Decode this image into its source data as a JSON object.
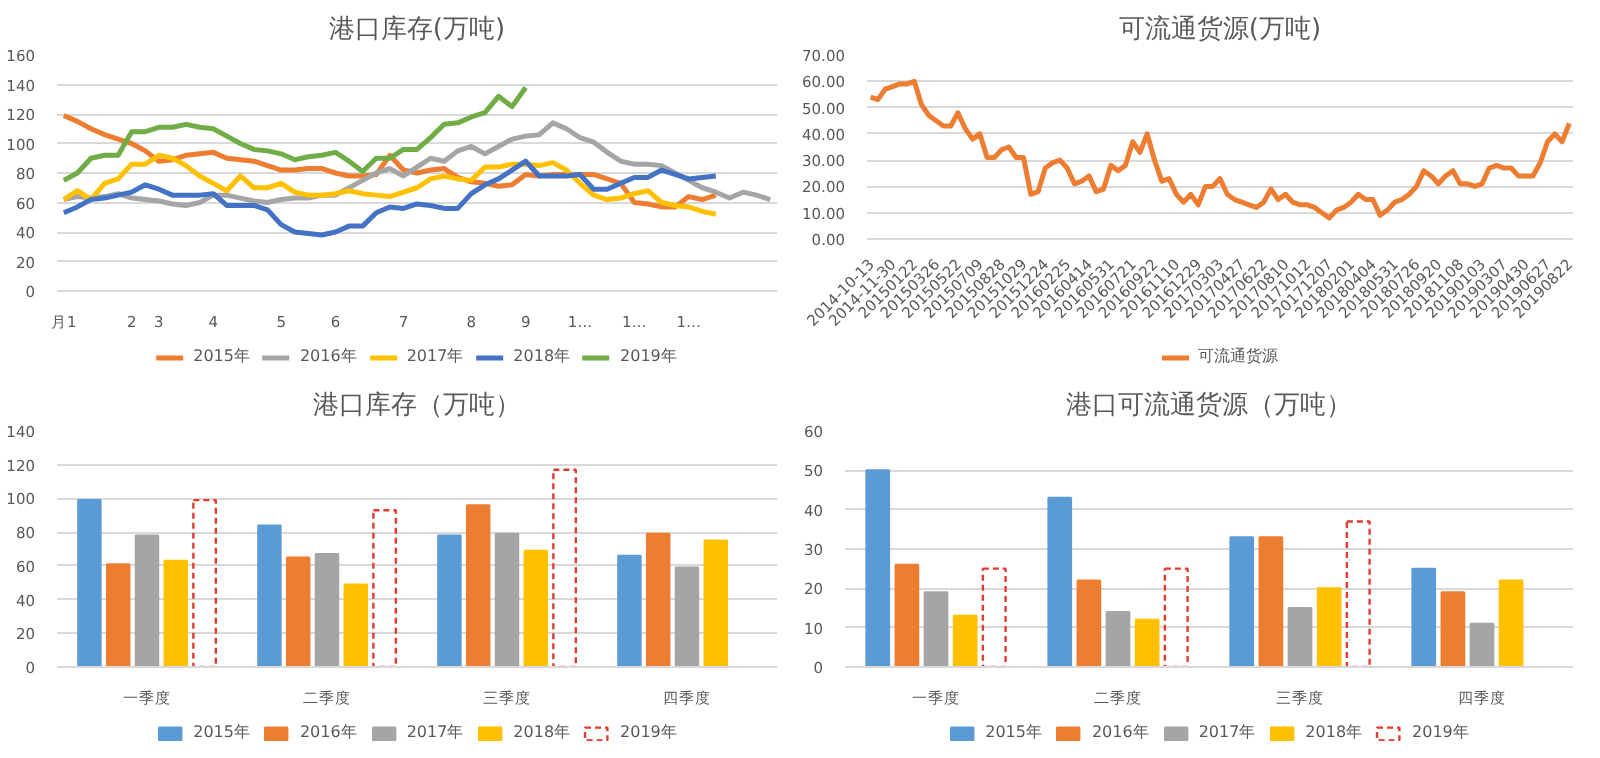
{
  "chart_data": [
    {
      "type": "line",
      "title": "港口库存(万吨)",
      "categories": [
        "月1",
        null,
        null,
        null,
        null,
        "2",
        null,
        "3",
        null,
        null,
        null,
        "4",
        null,
        null,
        null,
        null,
        "5",
        null,
        null,
        null,
        "6",
        null,
        null,
        null,
        null,
        "7",
        null,
        null,
        null,
        null,
        "8",
        null,
        null,
        null,
        "9",
        null,
        null,
        null,
        "1…",
        null,
        null,
        null,
        "1…",
        null,
        null,
        null,
        "1…",
        null,
        null,
        null,
        null,
        null,
        null
      ],
      "ylim": [
        0,
        160
      ],
      "yticks": [
        0,
        20,
        40,
        60,
        80,
        100,
        120,
        140,
        160
      ],
      "grid": "y",
      "legend": "bottom",
      "series": [
        {
          "name": "2015年",
          "color": "#ed7d31",
          "values": [
            119,
            115,
            110,
            106,
            103,
            100,
            95,
            88,
            89,
            92,
            93,
            94,
            90,
            89,
            88,
            85,
            82,
            82,
            83,
            83,
            80,
            78,
            78,
            79,
            92,
            82,
            80,
            82,
            83,
            77,
            74,
            73,
            71,
            72,
            79,
            78,
            79,
            79,
            79,
            79,
            76,
            73,
            60,
            59,
            57,
            57,
            64,
            62,
            65,
            null,
            null,
            null,
            null
          ]
        },
        {
          "name": "2016年",
          "color": "#a5a5a5",
          "values": [
            62,
            64,
            63,
            64,
            66,
            63,
            62,
            61,
            59,
            58,
            60,
            65,
            65,
            63,
            61,
            60,
            62,
            63,
            63,
            65,
            65,
            70,
            75,
            80,
            83,
            78,
            84,
            90,
            88,
            95,
            98,
            93,
            98,
            103,
            105,
            106,
            114,
            110,
            104,
            101,
            94,
            88,
            86,
            86,
            85,
            80,
            75,
            70,
            67,
            63,
            67,
            65,
            62
          ]
        },
        {
          "name": "2017年",
          "color": "#ffc000",
          "values": [
            62,
            68,
            62,
            73,
            76,
            86,
            86,
            92,
            90,
            85,
            78,
            73,
            68,
            78,
            70,
            70,
            73,
            67,
            65,
            65,
            66,
            68,
            66,
            65,
            64,
            67,
            70,
            76,
            78,
            76,
            75,
            84,
            84,
            86,
            86,
            85,
            87,
            82,
            73,
            65,
            62,
            63,
            66,
            68,
            60,
            58,
            57,
            54,
            52,
            null,
            null,
            null,
            null
          ]
        },
        {
          "name": "2018年",
          "color": "#4472c4",
          "values": [
            53,
            57,
            62,
            63,
            65,
            67,
            72,
            69,
            65,
            65,
            65,
            66,
            58,
            58,
            58,
            55,
            45,
            40,
            39,
            38,
            40,
            44,
            44,
            53,
            57,
            56,
            59,
            58,
            56,
            56,
            66,
            72,
            76,
            82,
            88,
            78,
            78,
            78,
            79,
            69,
            69,
            73,
            77,
            77,
            82,
            79,
            76,
            77,
            78,
            null,
            null,
            null,
            null
          ]
        },
        {
          "name": "2019年",
          "color": "#70ad47",
          "values": [
            75,
            80,
            90,
            92,
            92,
            108,
            108,
            111,
            111,
            113,
            111,
            110,
            105,
            100,
            96,
            95,
            93,
            89,
            91,
            92,
            94,
            88,
            81,
            90,
            90,
            96,
            96,
            104,
            113,
            114,
            118,
            121,
            132,
            125,
            138,
            null,
            null,
            null,
            null,
            null,
            null,
            null,
            null,
            null,
            null,
            null,
            null,
            null,
            null,
            null,
            null,
            null,
            null
          ]
        }
      ]
    },
    {
      "type": "line",
      "title": "可流通货源(万吨)",
      "categories": [
        "2014-10-13",
        null,
        null,
        "2014-11-30",
        null,
        null,
        "20150122",
        null,
        null,
        "20150326",
        null,
        null,
        "20150522",
        null,
        null,
        "20150709",
        null,
        null,
        "20150828",
        null,
        null,
        "20151029",
        null,
        null,
        "20151224",
        null,
        null,
        "20160225",
        null,
        null,
        "20160414",
        null,
        null,
        "20160531",
        null,
        null,
        "20160721",
        null,
        null,
        "20160922",
        null,
        null,
        "20161110",
        null,
        null,
        "20161229",
        null,
        null,
        "20170303",
        null,
        null,
        "20170427",
        null,
        null,
        "20170622",
        null,
        null,
        "20170810",
        null,
        null,
        "20171012",
        null,
        null,
        "20171207",
        null,
        null,
        "20180201",
        null,
        null,
        "20180404",
        null,
        null,
        "20180531",
        null,
        null,
        "20180726",
        null,
        null,
        "20180920",
        null,
        null,
        "20181108",
        null,
        null,
        "20190103",
        null,
        null,
        "20190307",
        null,
        null,
        "20190430",
        null,
        null,
        "20190627",
        null,
        null,
        "20190822"
      ],
      "ylim": [
        0,
        70
      ],
      "yticks": [
        {
          "value": 0,
          "label": "0.00"
        },
        {
          "value": 10,
          "label": "10.00"
        },
        {
          "value": 20,
          "label": "20.00"
        },
        {
          "value": 30,
          "label": "30.00"
        },
        {
          "value": 40,
          "label": "40.00"
        },
        {
          "value": 50,
          "label": "50.00"
        },
        {
          "value": 60,
          "label": "60.00"
        },
        {
          "value": 70,
          "label": "70.00"
        }
      ],
      "grid": "y",
      "legend": "bottom",
      "series": [
        {
          "name": "可流通货源",
          "color": "#ed7d31",
          "values": [
            54,
            53,
            57,
            58,
            59,
            59,
            60,
            51,
            47,
            45,
            43,
            43,
            48,
            42,
            38,
            40,
            31,
            31,
            34,
            35,
            31,
            31,
            17,
            18,
            27,
            29,
            30,
            27,
            21,
            22,
            24,
            18,
            19,
            28,
            26,
            28,
            37,
            33,
            40,
            30,
            22,
            23,
            17,
            14,
            17,
            13,
            20,
            20,
            23,
            17,
            15,
            14,
            13,
            12,
            14,
            19,
            15,
            17,
            14,
            13,
            13,
            12,
            10,
            8,
            11,
            12,
            14,
            17,
            15,
            15,
            9,
            11,
            14,
            15,
            17,
            20,
            26,
            24,
            21,
            24,
            26,
            21,
            21,
            20,
            21,
            27,
            28,
            27,
            27,
            24,
            24,
            24,
            29,
            37,
            40,
            37,
            44
          ]
        }
      ]
    },
    {
      "type": "bar",
      "title": "港口库存（万吨）",
      "categories": [
        "一季度",
        "二季度",
        "三季度",
        "四季度"
      ],
      "ylim": [
        0,
        140
      ],
      "yticks": [
        0,
        20,
        40,
        60,
        80,
        100,
        120,
        140
      ],
      "grid": "y",
      "legend": "bottom",
      "series": [
        {
          "name": "2015年",
          "color": "#5b9bd5",
          "values": [
            99,
            84,
            78,
            66
          ]
        },
        {
          "name": "2016年",
          "color": "#ed7d31",
          "values": [
            61,
            65,
            96,
            79
          ]
        },
        {
          "name": "2017年",
          "color": "#a5a5a5",
          "values": [
            78,
            67,
            79,
            59
          ]
        },
        {
          "name": "2018年",
          "color": "#ffc000",
          "values": [
            63,
            49,
            69,
            75
          ]
        },
        {
          "name": "2019年",
          "color": "#e03c31",
          "line_style": "dashed",
          "values": [
            99,
            93,
            117,
            null
          ]
        }
      ]
    },
    {
      "type": "bar",
      "title": "港口可流通货源（万吨）",
      "categories": [
        "一季度",
        "二季度",
        "三季度",
        "四季度"
      ],
      "ylim": [
        0,
        60
      ],
      "yticks": [
        0,
        10,
        20,
        30,
        40,
        50,
        60
      ],
      "grid": "y",
      "legend": "bottom",
      "series": [
        {
          "name": "2015年",
          "color": "#5b9bd5",
          "values": [
            50,
            43,
            33,
            25
          ]
        },
        {
          "name": "2016年",
          "color": "#ed7d31",
          "values": [
            26,
            22,
            33,
            19
          ]
        },
        {
          "name": "2017年",
          "color": "#a5a5a5",
          "values": [
            19,
            14,
            15,
            11
          ]
        },
        {
          "name": "2018年",
          "color": "#ffc000",
          "values": [
            13,
            12,
            20,
            22
          ]
        },
        {
          "name": "2019年",
          "color": "#e03c31",
          "line_style": "dashed",
          "values": [
            25,
            25,
            37,
            null
          ]
        }
      ]
    }
  ]
}
